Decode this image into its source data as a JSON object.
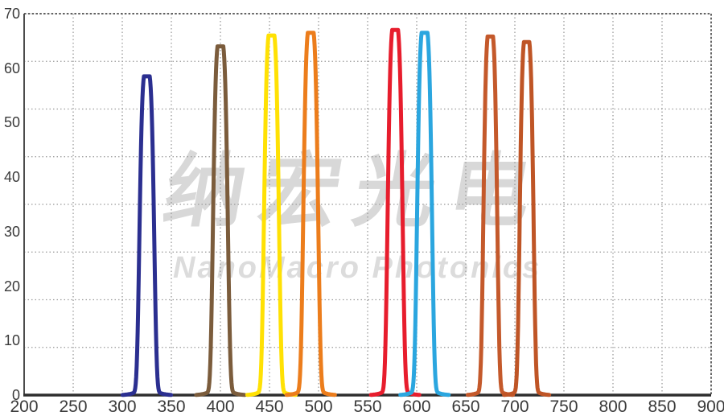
{
  "watermark": {
    "chinese": "纳宏光电",
    "english": "NanoMacro Photonics",
    "chinese_color": "#d8d8d8",
    "english_color": "#dcdcdc"
  },
  "axis": {
    "tick_label_color": "#3a3a3a"
  },
  "chart_data": {
    "type": "line",
    "title": "",
    "xlabel": "",
    "ylabel": "",
    "xlim": [
      200,
      900
    ],
    "ylim": [
      0,
      70
    ],
    "x_ticks": [
      200,
      250,
      300,
      350,
      400,
      450,
      500,
      550,
      600,
      650,
      700,
      750,
      800,
      850,
      900
    ],
    "y_ticks": [
      0,
      10,
      20,
      30,
      40,
      50,
      60,
      70
    ],
    "x_gridline_step_nm": 50,
    "y_grid_divisions": 8,
    "grid_style": "dotted",
    "legend": "none",
    "colors": {
      "grid": "#9b9b9b",
      "frame": "#4c4c4c",
      "axis": "#2e2e2e"
    },
    "series": [
      {
        "name": "band-325nm",
        "color": "#2B2F90",
        "center_nm": 325,
        "peak_transmission": 58.5,
        "fwhm_nm": 15
      },
      {
        "name": "band-400nm",
        "color": "#7B5C3C",
        "center_nm": 400,
        "peak_transmission": 64.0,
        "fwhm_nm": 15
      },
      {
        "name": "band-452nm",
        "color": "#FFE104",
        "center_nm": 452,
        "peak_transmission": 66.0,
        "fwhm_nm": 15
      },
      {
        "name": "band-492nm",
        "color": "#EC7D1C",
        "center_nm": 492,
        "peak_transmission": 66.5,
        "fwhm_nm": 15
      },
      {
        "name": "band-578nm",
        "color": "#E71D2D",
        "center_nm": 578,
        "peak_transmission": 67.0,
        "fwhm_nm": 15
      },
      {
        "name": "band-608nm",
        "color": "#2BA6DF",
        "center_nm": 608,
        "peak_transmission": 66.5,
        "fwhm_nm": 15
      },
      {
        "name": "band-675nm",
        "color": "#C4592B",
        "center_nm": 675,
        "peak_transmission": 65.8,
        "fwhm_nm": 14
      },
      {
        "name": "band-712nm",
        "color": "#BF5526",
        "center_nm": 712,
        "peak_transmission": 64.8,
        "fwhm_nm": 14
      }
    ]
  }
}
